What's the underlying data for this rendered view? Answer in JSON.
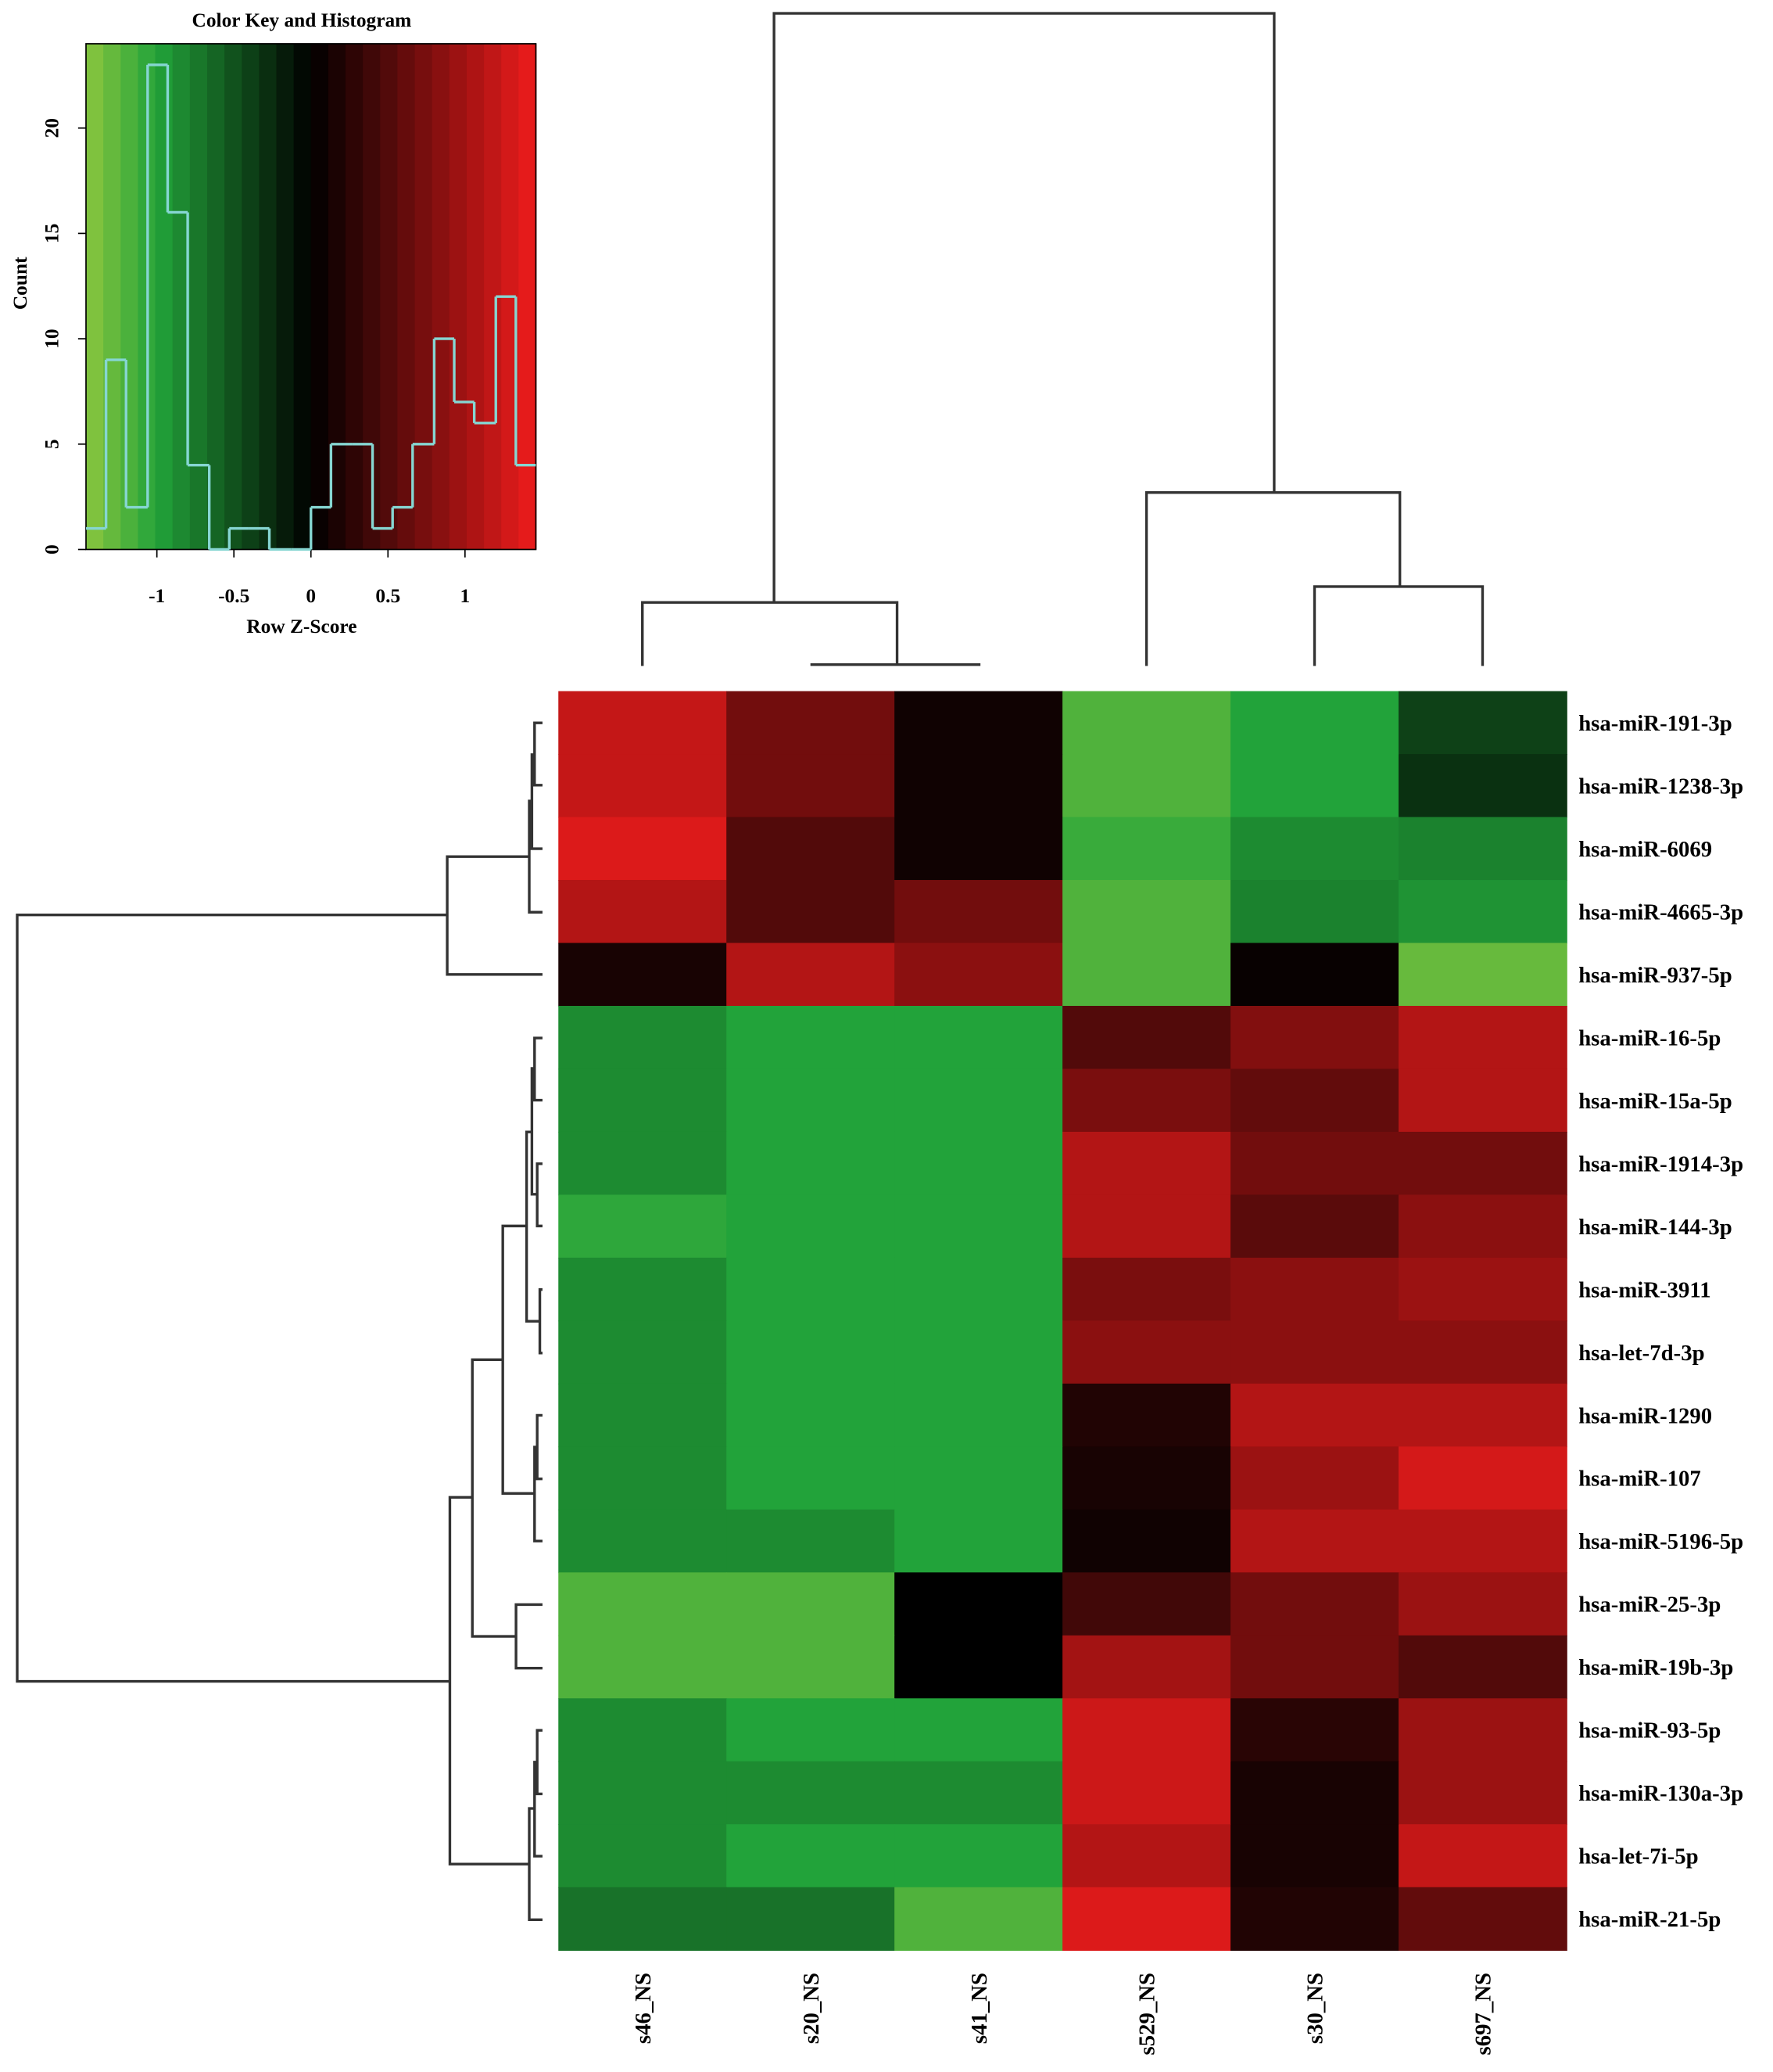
{
  "chart_data": {
    "type": "heatmap",
    "key_title": "Color Key and Histogram",
    "key_xlabel": "Row Z-Score",
    "key_ylabel": "Count",
    "xlim": [
      -1.46,
      1.46
    ],
    "xticks": [
      -1,
      -0.5,
      0,
      0.5,
      1
    ],
    "ylim": [
      0,
      24
    ],
    "yticks": [
      0,
      5,
      10,
      15,
      20
    ],
    "colormap": [
      {
        "value": -1.46,
        "color": "#8cc63f"
      },
      {
        "value": -1,
        "color": "#22a33a"
      },
      {
        "value": 0,
        "color": "#000000"
      },
      {
        "value": 1.46,
        "color": "#ee1c1c"
      }
    ],
    "histogram_color": "#86d6d2",
    "bins": [
      -1.46,
      -1.33,
      -1.2,
      -1.06,
      -0.93,
      -0.8,
      -0.66,
      -0.53,
      -0.4,
      -0.27,
      -0.13,
      0,
      0.13,
      0.27,
      0.4,
      0.53,
      0.66,
      0.8,
      0.93,
      1.06,
      1.2,
      1.33,
      1.46
    ],
    "counts": [
      1,
      9,
      2,
      23,
      16,
      4,
      0,
      1,
      1,
      0,
      0,
      2,
      5,
      5,
      1,
      2,
      5,
      10,
      7,
      6,
      12,
      4
    ],
    "x_categories": [
      "s46_NS",
      "s20_NS",
      "s41_NS",
      "s529_NS",
      "s30_NS",
      "s697_NS"
    ],
    "y_categories": [
      "hsa-miR-191-3p",
      "hsa-miR-1238-3p",
      "hsa-miR-6069",
      "hsa-miR-4665-3p",
      "hsa-miR-937-5p",
      "hsa-miR-16-5p",
      "hsa-miR-15a-5p",
      "hsa-miR-1914-3p",
      "hsa-miR-144-3p",
      "hsa-miR-3911",
      "hsa-let-7d-3p",
      "hsa-miR-1290",
      "hsa-miR-107",
      "hsa-miR-5196-5p",
      "hsa-miR-25-3p",
      "hsa-miR-19b-3p",
      "hsa-miR-93-5p",
      "hsa-miR-130a-3p",
      "hsa-let-7i-5p",
      "hsa-miR-21-5p"
    ],
    "values": [
      [
        1.2,
        0.7,
        0.1,
        -1.2,
        -1.0,
        -0.4
      ],
      [
        1.2,
        0.7,
        0.1,
        -1.2,
        -1.0,
        -0.3
      ],
      [
        1.35,
        0.5,
        0.1,
        -1.1,
        -0.85,
        -0.8
      ],
      [
        1.1,
        0.5,
        0.7,
        -1.2,
        -0.8,
        -0.9
      ],
      [
        0.15,
        1.1,
        0.85,
        -1.2,
        0.05,
        -1.3
      ],
      [
        -0.85,
        -1.0,
        -1.0,
        0.5,
        0.8,
        1.1
      ],
      [
        -0.85,
        -1.0,
        -1.0,
        0.75,
        0.6,
        1.1
      ],
      [
        -0.85,
        -1.0,
        -1.0,
        1.1,
        0.7,
        0.7
      ],
      [
        -1.05,
        -1.0,
        -1.0,
        1.1,
        0.55,
        0.85
      ],
      [
        -0.85,
        -1.0,
        -1.0,
        0.75,
        0.85,
        0.95
      ],
      [
        -0.85,
        -1.0,
        -1.0,
        0.85,
        0.85,
        0.85
      ],
      [
        -0.85,
        -1.0,
        -1.0,
        0.2,
        1.1,
        1.1
      ],
      [
        -0.85,
        -1.0,
        -1.0,
        0.15,
        0.95,
        1.3
      ],
      [
        -0.85,
        -0.85,
        -1.0,
        0.1,
        1.1,
        1.1
      ],
      [
        -1.2,
        -1.2,
        0.0,
        0.4,
        0.7,
        0.95
      ],
      [
        -1.2,
        -1.2,
        0.0,
        1.0,
        0.7,
        0.5
      ],
      [
        -0.85,
        -1.0,
        -1.0,
        1.25,
        0.25,
        0.95
      ],
      [
        -0.85,
        -0.85,
        -0.85,
        1.25,
        0.15,
        0.95
      ],
      [
        -0.85,
        -1.0,
        -1.0,
        1.1,
        0.15,
        1.2
      ],
      [
        -0.7,
        -0.7,
        -1.2,
        1.35,
        0.2,
        0.6
      ]
    ]
  }
}
